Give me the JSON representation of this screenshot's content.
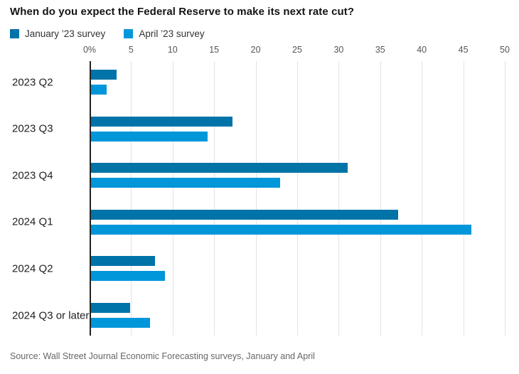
{
  "title": "When do you expect the Federal Reserve to make its next rate cut?",
  "legend": [
    {
      "label": "January ’23 survey",
      "color": "#0073a8"
    },
    {
      "label": "April ’23 survey",
      "color": "#0096da"
    }
  ],
  "source": "Source: Wall Street Journal Economic Forecasting surveys, January and April",
  "colors": {
    "january_series": "#0073a8",
    "april_series": "#0096da",
    "grid": "#e3e3e3",
    "axis": "#222222",
    "title_text": "#141414",
    "tick_text": "#555555",
    "source_text": "#666666"
  },
  "chart_data": {
    "type": "bar",
    "orientation": "horizontal",
    "title": "When do you expect the Federal Reserve to make its next rate cut?",
    "categories": [
      "2023 Q2",
      "2023 Q3",
      "2023 Q4",
      "2024 Q1",
      "2024 Q2",
      "2024 Q3 or later"
    ],
    "series": [
      {
        "name": "January ’23 survey",
        "color": "#0073a8",
        "values": [
          3.1,
          17.0,
          30.9,
          37.0,
          7.7,
          4.7
        ]
      },
      {
        "name": "April ’23 survey",
        "color": "#0096da",
        "values": [
          1.9,
          14.0,
          22.8,
          45.8,
          8.9,
          7.1
        ]
      }
    ],
    "x_axis": {
      "position": "top",
      "min": 0,
      "max": 50,
      "tick_values": [
        0,
        5,
        10,
        15,
        20,
        25,
        30,
        35,
        40,
        45,
        50
      ],
      "tick_labels": [
        "0%",
        "5",
        "10",
        "15",
        "20",
        "25",
        "30",
        "35",
        "40",
        "45",
        "50"
      ],
      "grid": true
    },
    "legend_position": "top",
    "unit": "percent of survey respondents"
  }
}
